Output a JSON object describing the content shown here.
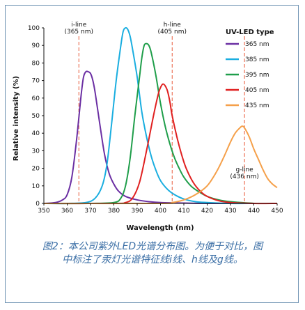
{
  "chart_data": {
    "type": "line",
    "xlabel": "Wavelength (nm)",
    "ylabel": "Relative intensity (%)",
    "xlim": [
      350,
      450
    ],
    "ylim": [
      0,
      100
    ],
    "x_ticks": [
      350,
      360,
      370,
      380,
      390,
      400,
      410,
      420,
      430,
      440,
      450
    ],
    "y_ticks": [
      0,
      10,
      20,
      30,
      40,
      50,
      60,
      70,
      80,
      90,
      100
    ],
    "legend": {
      "title": "UV-LED type",
      "position": "top-right"
    },
    "series": [
      {
        "name": "365 nm",
        "color": "#6b2fa3",
        "x": [
          350,
          355,
          358,
          360,
          362,
          364,
          366,
          367,
          368,
          369,
          370,
          371,
          372,
          374,
          376,
          378,
          380,
          382,
          385,
          390,
          395,
          400,
          410,
          420,
          430
        ],
        "y": [
          0,
          0.5,
          2,
          5,
          15,
          36,
          62,
          72,
          75,
          75,
          74,
          70,
          63,
          45,
          28,
          17,
          11,
          7,
          4,
          2,
          1,
          0.5,
          0.2,
          0,
          0
        ]
      },
      {
        "name": "385 nm",
        "color": "#1aaee0",
        "x": [
          350,
          360,
          368,
          372,
          375,
          377,
          379,
          381,
          383,
          384,
          385,
          386,
          387,
          388,
          390,
          392,
          394,
          396,
          398,
          400,
          403,
          406,
          410,
          415,
          420,
          430,
          440
        ],
        "y": [
          0,
          0,
          0.5,
          3,
          10,
          22,
          45,
          70,
          90,
          98,
          100,
          99,
          95,
          88,
          72,
          52,
          38,
          27,
          19,
          13,
          8,
          5,
          2.5,
          1,
          0.5,
          0,
          0
        ]
      },
      {
        "name": "395 nm",
        "color": "#1f9e4a",
        "x": [
          350,
          370,
          380,
          383,
          385,
          387,
          389,
          391,
          392,
          393,
          394,
          395,
          396,
          398,
          400,
          402,
          404,
          406,
          408,
          410,
          413,
          416,
          420,
          425,
          430,
          440
        ],
        "y": [
          0,
          0,
          0.5,
          3,
          10,
          26,
          50,
          72,
          83,
          90,
          91,
          90,
          86,
          73,
          57,
          44,
          34,
          26,
          20,
          15,
          10,
          7,
          4,
          2,
          1,
          0
        ]
      },
      {
        "name": "405 nm",
        "color": "#e02020",
        "x": [
          350,
          380,
          385,
          388,
          391,
          394,
          397,
          399,
          400,
          401,
          402,
          403,
          404,
          405,
          407,
          409,
          411,
          414,
          417,
          420,
          425,
          430,
          440,
          450
        ],
        "y": [
          0,
          0,
          0.5,
          3,
          12,
          30,
          50,
          62,
          66,
          68,
          67,
          64,
          58,
          50,
          38,
          28,
          20,
          12,
          7,
          4,
          1.5,
          0.5,
          0,
          0
        ]
      },
      {
        "name": "435 nm",
        "color": "#f5a04a",
        "x": [
          350,
          400,
          405,
          410,
          415,
          420,
          424,
          427,
          430,
          432,
          434,
          435,
          436,
          438,
          440,
          442,
          444,
          446,
          448,
          450
        ],
        "y": [
          0,
          0,
          0.5,
          2,
          5,
          10,
          18,
          26,
          35,
          40,
          43,
          44,
          43,
          38,
          31,
          25,
          19,
          14,
          11,
          9
        ]
      }
    ],
    "annotations": [
      {
        "x": 365,
        "label": [
          "i-line",
          "(365 nm)"
        ]
      },
      {
        "x": 405,
        "label": [
          "h-line",
          "(405 nm)"
        ]
      },
      {
        "x": 436,
        "label": [
          "g-line",
          "(436 nm)"
        ]
      }
    ]
  },
  "caption": {
    "line1": "图2：本公司紫外LED光谱分布图。为便于对比，图",
    "line2": "中标注了汞灯光谱特征线i线、h线及g线。"
  }
}
